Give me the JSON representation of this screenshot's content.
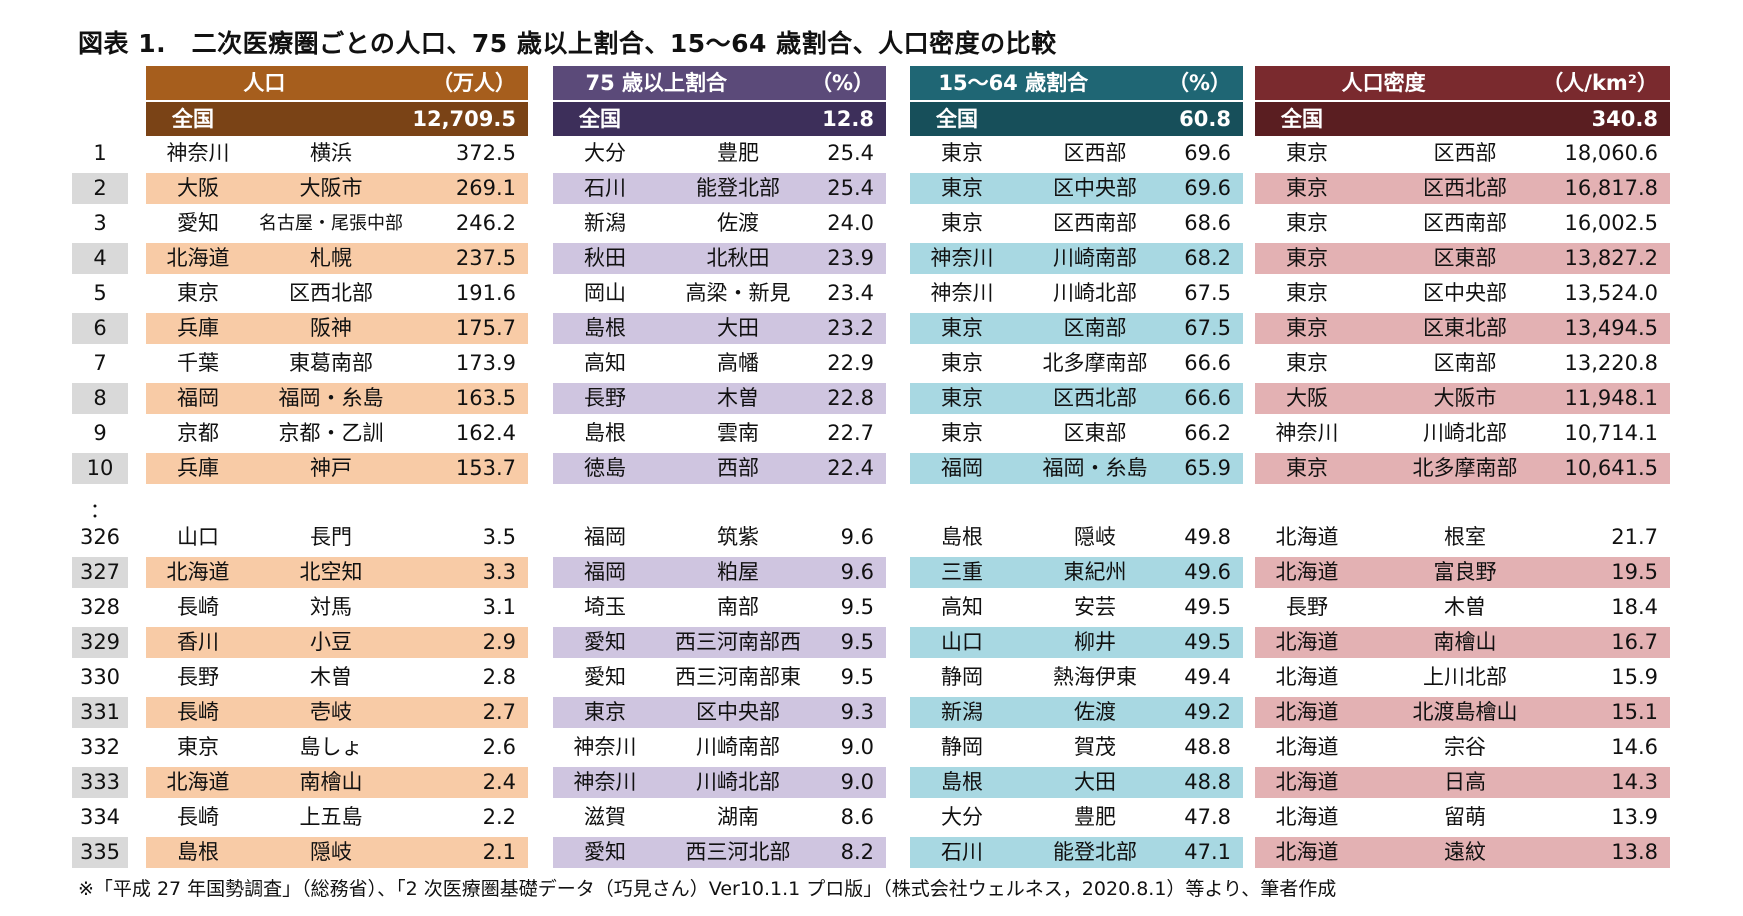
{
  "title": "図表 1.　二次医療圏ごとの人口、75 歳以上割合、15～64 歳割合、人口密度の比較",
  "footnote": "※「平成 27 年国勢調査」（総務省）、「2 次医療圏基礎データ（巧見さん）Ver10.1.1 プロ版」（株式会社ウェルネス，2020.8.1）等より、筆者作成",
  "separator": "：",
  "ranks_top": [
    "1",
    "2",
    "3",
    "4",
    "5",
    "6",
    "7",
    "8",
    "9",
    "10"
  ],
  "ranks_bottom": [
    "326",
    "327",
    "328",
    "329",
    "330",
    "331",
    "332",
    "333",
    "334",
    "335"
  ],
  "colors": {
    "population": {
      "header": "#a65e1d",
      "national": "#7a4316",
      "shade": "#f8cba6"
    },
    "age75": {
      "header": "#5b4a79",
      "national": "#3d2f5a",
      "shade": "#cfc5e0"
    },
    "age15_64": {
      "header": "#1f6674",
      "national": "#174f5a",
      "shade": "#a8d8e2"
    },
    "density": {
      "header": "#7a2a2e",
      "national": "#5a1e21",
      "shade": "#e3b1b3"
    }
  },
  "chart_data": {
    "type": "table",
    "tables": [
      {
        "key": "population",
        "title": "人口",
        "unit": "（万人）",
        "national_label": "全国",
        "national_value": "12,709.5",
        "top": [
          {
            "rank": 1,
            "pref": "神奈川",
            "area": "横浜",
            "value": "372.5"
          },
          {
            "rank": 2,
            "pref": "大阪",
            "area": "大阪市",
            "value": "269.1"
          },
          {
            "rank": 3,
            "pref": "愛知",
            "area": "名古屋・尾張中部",
            "value": "246.2"
          },
          {
            "rank": 4,
            "pref": "北海道",
            "area": "札幌",
            "value": "237.5"
          },
          {
            "rank": 5,
            "pref": "東京",
            "area": "区西北部",
            "value": "191.6"
          },
          {
            "rank": 6,
            "pref": "兵庫",
            "area": "阪神",
            "value": "175.7"
          },
          {
            "rank": 7,
            "pref": "千葉",
            "area": "東葛南部",
            "value": "173.9"
          },
          {
            "rank": 8,
            "pref": "福岡",
            "area": "福岡・糸島",
            "value": "163.5"
          },
          {
            "rank": 9,
            "pref": "京都",
            "area": "京都・乙訓",
            "value": "162.4"
          },
          {
            "rank": 10,
            "pref": "兵庫",
            "area": "神戸",
            "value": "153.7"
          }
        ],
        "bottom": [
          {
            "rank": 326,
            "pref": "山口",
            "area": "長門",
            "value": "3.5"
          },
          {
            "rank": 327,
            "pref": "北海道",
            "area": "北空知",
            "value": "3.3"
          },
          {
            "rank": 328,
            "pref": "長崎",
            "area": "対馬",
            "value": "3.1"
          },
          {
            "rank": 329,
            "pref": "香川",
            "area": "小豆",
            "value": "2.9"
          },
          {
            "rank": 330,
            "pref": "長野",
            "area": "木曽",
            "value": "2.8"
          },
          {
            "rank": 331,
            "pref": "長崎",
            "area": "壱岐",
            "value": "2.7"
          },
          {
            "rank": 332,
            "pref": "東京",
            "area": "島しょ",
            "value": "2.6"
          },
          {
            "rank": 333,
            "pref": "北海道",
            "area": "南檜山",
            "value": "2.4"
          },
          {
            "rank": 334,
            "pref": "長崎",
            "area": "上五島",
            "value": "2.2"
          },
          {
            "rank": 335,
            "pref": "島根",
            "area": "隠岐",
            "value": "2.1"
          }
        ]
      },
      {
        "key": "age75",
        "title": "75 歳以上割合",
        "unit": "（%）",
        "national_label": "全国",
        "national_value": "12.8",
        "top": [
          {
            "rank": 1,
            "pref": "大分",
            "area": "豊肥",
            "value": "25.4"
          },
          {
            "rank": 2,
            "pref": "石川",
            "area": "能登北部",
            "value": "25.4"
          },
          {
            "rank": 3,
            "pref": "新潟",
            "area": "佐渡",
            "value": "24.0"
          },
          {
            "rank": 4,
            "pref": "秋田",
            "area": "北秋田",
            "value": "23.9"
          },
          {
            "rank": 5,
            "pref": "岡山",
            "area": "高梁・新見",
            "value": "23.4"
          },
          {
            "rank": 6,
            "pref": "島根",
            "area": "大田",
            "value": "23.2"
          },
          {
            "rank": 7,
            "pref": "高知",
            "area": "高幡",
            "value": "22.9"
          },
          {
            "rank": 8,
            "pref": "長野",
            "area": "木曽",
            "value": "22.8"
          },
          {
            "rank": 9,
            "pref": "島根",
            "area": "雲南",
            "value": "22.7"
          },
          {
            "rank": 10,
            "pref": "徳島",
            "area": "西部",
            "value": "22.4"
          }
        ],
        "bottom": [
          {
            "rank": 326,
            "pref": "福岡",
            "area": "筑紫",
            "value": "9.6"
          },
          {
            "rank": 327,
            "pref": "福岡",
            "area": "粕屋",
            "value": "9.6"
          },
          {
            "rank": 328,
            "pref": "埼玉",
            "area": "南部",
            "value": "9.5"
          },
          {
            "rank": 329,
            "pref": "愛知",
            "area": "西三河南部西",
            "value": "9.5"
          },
          {
            "rank": 330,
            "pref": "愛知",
            "area": "西三河南部東",
            "value": "9.5"
          },
          {
            "rank": 331,
            "pref": "東京",
            "area": "区中央部",
            "value": "9.3"
          },
          {
            "rank": 332,
            "pref": "神奈川",
            "area": "川崎南部",
            "value": "9.0"
          },
          {
            "rank": 333,
            "pref": "神奈川",
            "area": "川崎北部",
            "value": "9.0"
          },
          {
            "rank": 334,
            "pref": "滋賀",
            "area": "湖南",
            "value": "8.6"
          },
          {
            "rank": 335,
            "pref": "愛知",
            "area": "西三河北部",
            "value": "8.2"
          }
        ]
      },
      {
        "key": "age15_64",
        "title": "15～64 歳割合",
        "unit": "（%）",
        "national_label": "全国",
        "national_value": "60.8",
        "top": [
          {
            "rank": 1,
            "pref": "東京",
            "area": "区西部",
            "value": "69.6"
          },
          {
            "rank": 2,
            "pref": "東京",
            "area": "区中央部",
            "value": "69.6"
          },
          {
            "rank": 3,
            "pref": "東京",
            "area": "区西南部",
            "value": "68.6"
          },
          {
            "rank": 4,
            "pref": "神奈川",
            "area": "川崎南部",
            "value": "68.2"
          },
          {
            "rank": 5,
            "pref": "神奈川",
            "area": "川崎北部",
            "value": "67.5"
          },
          {
            "rank": 6,
            "pref": "東京",
            "area": "区南部",
            "value": "67.5"
          },
          {
            "rank": 7,
            "pref": "東京",
            "area": "北多摩南部",
            "value": "66.6"
          },
          {
            "rank": 8,
            "pref": "東京",
            "area": "区西北部",
            "value": "66.6"
          },
          {
            "rank": 9,
            "pref": "東京",
            "area": "区東部",
            "value": "66.2"
          },
          {
            "rank": 10,
            "pref": "福岡",
            "area": "福岡・糸島",
            "value": "65.9"
          }
        ],
        "bottom": [
          {
            "rank": 326,
            "pref": "島根",
            "area": "隠岐",
            "value": "49.8"
          },
          {
            "rank": 327,
            "pref": "三重",
            "area": "東紀州",
            "value": "49.6"
          },
          {
            "rank": 328,
            "pref": "高知",
            "area": "安芸",
            "value": "49.5"
          },
          {
            "rank": 329,
            "pref": "山口",
            "area": "柳井",
            "value": "49.5"
          },
          {
            "rank": 330,
            "pref": "静岡",
            "area": "熱海伊東",
            "value": "49.4"
          },
          {
            "rank": 331,
            "pref": "新潟",
            "area": "佐渡",
            "value": "49.2"
          },
          {
            "rank": 332,
            "pref": "静岡",
            "area": "賀茂",
            "value": "48.8"
          },
          {
            "rank": 333,
            "pref": "島根",
            "area": "大田",
            "value": "48.8"
          },
          {
            "rank": 334,
            "pref": "大分",
            "area": "豊肥",
            "value": "47.8"
          },
          {
            "rank": 335,
            "pref": "石川",
            "area": "能登北部",
            "value": "47.1"
          }
        ]
      },
      {
        "key": "density",
        "title": "人口密度",
        "unit": "（人/km²）",
        "national_label": "全国",
        "national_value": "340.8",
        "top": [
          {
            "rank": 1,
            "pref": "東京",
            "area": "区西部",
            "value": "18,060.6"
          },
          {
            "rank": 2,
            "pref": "東京",
            "area": "区西北部",
            "value": "16,817.8"
          },
          {
            "rank": 3,
            "pref": "東京",
            "area": "区西南部",
            "value": "16,002.5"
          },
          {
            "rank": 4,
            "pref": "東京",
            "area": "区東部",
            "value": "13,827.2"
          },
          {
            "rank": 5,
            "pref": "東京",
            "area": "区中央部",
            "value": "13,524.0"
          },
          {
            "rank": 6,
            "pref": "東京",
            "area": "区東北部",
            "value": "13,494.5"
          },
          {
            "rank": 7,
            "pref": "東京",
            "area": "区南部",
            "value": "13,220.8"
          },
          {
            "rank": 8,
            "pref": "大阪",
            "area": "大阪市",
            "value": "11,948.1"
          },
          {
            "rank": 9,
            "pref": "神奈川",
            "area": "川崎北部",
            "value": "10,714.1"
          },
          {
            "rank": 10,
            "pref": "東京",
            "area": "北多摩南部",
            "value": "10,641.5"
          }
        ],
        "bottom": [
          {
            "rank": 326,
            "pref": "北海道",
            "area": "根室",
            "value": "21.7"
          },
          {
            "rank": 327,
            "pref": "北海道",
            "area": "富良野",
            "value": "19.5"
          },
          {
            "rank": 328,
            "pref": "長野",
            "area": "木曽",
            "value": "18.4"
          },
          {
            "rank": 329,
            "pref": "北海道",
            "area": "南檜山",
            "value": "16.7"
          },
          {
            "rank": 330,
            "pref": "北海道",
            "area": "上川北部",
            "value": "15.9"
          },
          {
            "rank": 331,
            "pref": "北海道",
            "area": "北渡島檜山",
            "value": "15.1"
          },
          {
            "rank": 332,
            "pref": "北海道",
            "area": "宗谷",
            "value": "14.6"
          },
          {
            "rank": 333,
            "pref": "北海道",
            "area": "日高",
            "value": "14.3"
          },
          {
            "rank": 334,
            "pref": "北海道",
            "area": "留萌",
            "value": "13.9"
          },
          {
            "rank": 335,
            "pref": "北海道",
            "area": "遠紋",
            "value": "13.8"
          }
        ]
      }
    ]
  }
}
